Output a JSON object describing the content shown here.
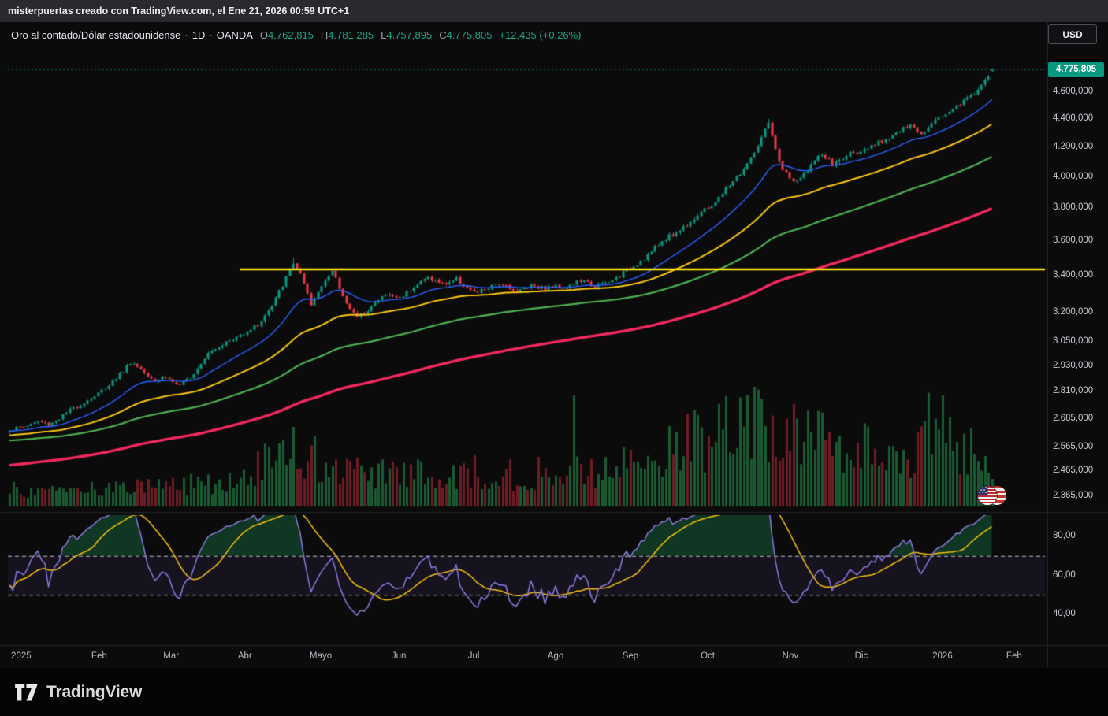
{
  "header": {
    "watermark": "misterpuertas creado con TradingView.com, el Ene 21, 2026 00:59 UTC+1"
  },
  "legend": {
    "symbol": "Oro al contado/Dólar estadounidense",
    "sep": "·",
    "interval": "1D",
    "exchange": "OANDA",
    "open_label": "O",
    "open_value": "4.762,815",
    "high_label": "H",
    "high_value": "4.781,285",
    "low_label": "L",
    "low_value": "4.757,895",
    "close_label": "C",
    "close_value": "4.775,805",
    "change": "+12,435 (+0,26%)"
  },
  "toolbar": {
    "currency": "USD"
  },
  "price_tag": {
    "value": "4.775,805"
  },
  "footer": {
    "brand": "TradingView"
  },
  "chart_data": {
    "type": "candlestick",
    "title": "Oro al contado/Dólar estadounidense (XAU/USD) · 1D · OANDA",
    "scale": "logarithmic",
    "candles_count": 278,
    "ohlc_last": {
      "open": 4762.815,
      "high": 4781.285,
      "low": 4757.895,
      "close": 4775.805,
      "change": 12.435,
      "change_pct": 0.26
    },
    "price_axis_ticks": [
      {
        "label": "4.600,000",
        "value": 4600
      },
      {
        "label": "4.400,000",
        "value": 4400
      },
      {
        "label": "4.200,000",
        "value": 4200
      },
      {
        "label": "4.000,000",
        "value": 4000
      },
      {
        "label": "3.800,000",
        "value": 3800
      },
      {
        "label": "3.600,000",
        "value": 3600
      },
      {
        "label": "3.400,000",
        "value": 3400
      },
      {
        "label": "3.200,000",
        "value": 3200
      },
      {
        "label": "3.050,000",
        "value": 3050
      },
      {
        "label": "2.930,000",
        "value": 2930
      },
      {
        "label": "2.810,000",
        "value": 2810
      },
      {
        "label": "2.685,000",
        "value": 2685
      },
      {
        "label": "2.565,000",
        "value": 2565
      },
      {
        "label": "2.465,000",
        "value": 2465
      },
      {
        "label": "2.365,000",
        "value": 2365
      }
    ],
    "time_axis": [
      {
        "label": "2025",
        "index": 3.3
      },
      {
        "label": "Feb",
        "index": 25.3
      },
      {
        "label": "Mar",
        "index": 45.6
      },
      {
        "label": "Abr",
        "index": 66.4
      },
      {
        "label": "Mayo",
        "index": 87.8
      },
      {
        "label": "Jun",
        "index": 109.8
      },
      {
        "label": "Jul",
        "index": 130.9
      },
      {
        "label": "Ago",
        "index": 154
      },
      {
        "label": "Sep",
        "index": 175.1
      },
      {
        "label": "Oct",
        "index": 196.9
      },
      {
        "label": "Nov",
        "index": 220.2
      },
      {
        "label": "Dic",
        "index": 240.2
      },
      {
        "label": "2026",
        "index": 263.1
      },
      {
        "label": "Feb",
        "index": 283.3
      }
    ],
    "close_anchors": [
      [
        0,
        2640
      ],
      [
        4,
        2652
      ],
      [
        8,
        2676
      ],
      [
        11,
        2662
      ],
      [
        14,
        2690
      ],
      [
        18,
        2735
      ],
      [
        22,
        2770
      ],
      [
        25,
        2800
      ],
      [
        29,
        2860
      ],
      [
        32,
        2908
      ],
      [
        34,
        2950
      ],
      [
        37,
        2918
      ],
      [
        41,
        2865
      ],
      [
        44,
        2880
      ],
      [
        48,
        2832
      ],
      [
        52,
        2900
      ],
      [
        56,
        3000
      ],
      [
        60,
        3040
      ],
      [
        63,
        3058
      ],
      [
        66,
        3098
      ],
      [
        70,
        3135
      ],
      [
        74,
        3235
      ],
      [
        78,
        3390
      ],
      [
        80,
        3475
      ],
      [
        82,
        3405
      ],
      [
        85,
        3235
      ],
      [
        87,
        3310
      ],
      [
        89,
        3385
      ],
      [
        91,
        3425
      ],
      [
        94,
        3285
      ],
      [
        98,
        3170
      ],
      [
        102,
        3235
      ],
      [
        106,
        3298
      ],
      [
        110,
        3280
      ],
      [
        114,
        3342
      ],
      [
        118,
        3392
      ],
      [
        122,
        3352
      ],
      [
        126,
        3382
      ],
      [
        131,
        3302
      ],
      [
        135,
        3332
      ],
      [
        139,
        3362
      ],
      [
        143,
        3312
      ],
      [
        147,
        3352
      ],
      [
        151,
        3330
      ],
      [
        154,
        3342
      ],
      [
        157,
        3338
      ],
      [
        161,
        3372
      ],
      [
        165,
        3342
      ],
      [
        169,
        3362
      ],
      [
        172,
        3402
      ],
      [
        175,
        3442
      ],
      [
        179,
        3502
      ],
      [
        182,
        3558
      ],
      [
        185,
        3618
      ],
      [
        188,
        3652
      ],
      [
        191,
        3702
      ],
      [
        194,
        3758
      ],
      [
        197,
        3802
      ],
      [
        200,
        3862
      ],
      [
        203,
        3952
      ],
      [
        206,
        4022
      ],
      [
        209,
        4122
      ],
      [
        212,
        4262
      ],
      [
        214,
        4368
      ],
      [
        216,
        4178
      ],
      [
        218,
        4052
      ],
      [
        220,
        3992
      ],
      [
        222,
        3962
      ],
      [
        226,
        4082
      ],
      [
        229,
        4152
      ],
      [
        232,
        4082
      ],
      [
        235,
        4122
      ],
      [
        238,
        4178
      ],
      [
        240,
        4158
      ],
      [
        243,
        4202
      ],
      [
        247,
        4262
      ],
      [
        250,
        4302
      ],
      [
        254,
        4352
      ],
      [
        257,
        4298
      ],
      [
        260,
        4382
      ],
      [
        263,
        4422
      ],
      [
        266,
        4482
      ],
      [
        269,
        4532
      ],
      [
        271,
        4578
      ],
      [
        273,
        4622
      ],
      [
        275,
        4682
      ],
      [
        276,
        4732
      ],
      [
        277,
        4775.805
      ]
    ],
    "wick_highs": {
      "80": 3500,
      "214": 4402
    },
    "volume_envelope": [
      [
        0,
        0.16
      ],
      [
        20,
        0.15
      ],
      [
        40,
        0.17
      ],
      [
        60,
        0.22
      ],
      [
        66,
        0.3
      ],
      [
        75,
        0.42
      ],
      [
        80,
        0.52
      ],
      [
        85,
        0.46
      ],
      [
        90,
        0.36
      ],
      [
        100,
        0.3
      ],
      [
        110,
        0.28
      ],
      [
        120,
        0.3
      ],
      [
        130,
        0.32
      ],
      [
        140,
        0.28
      ],
      [
        150,
        0.3
      ],
      [
        158,
        0.36
      ],
      [
        165,
        0.3
      ],
      [
        172,
        0.34
      ],
      [
        178,
        0.44
      ],
      [
        185,
        0.5
      ],
      [
        190,
        0.56
      ],
      [
        195,
        0.6
      ],
      [
        200,
        0.66
      ],
      [
        205,
        0.76
      ],
      [
        210,
        0.86
      ],
      [
        214,
        0.8
      ],
      [
        218,
        0.72
      ],
      [
        222,
        0.62
      ],
      [
        226,
        0.56
      ],
      [
        230,
        0.6
      ],
      [
        235,
        0.56
      ],
      [
        240,
        0.5
      ],
      [
        245,
        0.5
      ],
      [
        250,
        0.46
      ],
      [
        255,
        0.52
      ],
      [
        258,
        0.62
      ],
      [
        262,
        0.7
      ],
      [
        266,
        0.56
      ],
      [
        270,
        0.5
      ],
      [
        274,
        0.46
      ],
      [
        277,
        0.42
      ]
    ],
    "volume_spikes": {
      "159": 0.93,
      "210": 1.0,
      "212": 0.9,
      "259": 0.95
    },
    "horizontal_line": {
      "price": 3436,
      "start_index": 65
    },
    "price_line": {
      "price": 4775.805,
      "style": "dotted"
    },
    "moving_averages": [
      {
        "name": "ma-long",
        "period": 200,
        "seed": 2488,
        "width": 3.4,
        "color_key": "ma_red"
      },
      {
        "name": "ema-slow",
        "period": 100,
        "seed": 2592,
        "width": 2.2,
        "color_key": "ma_green"
      },
      {
        "name": "ema-medium",
        "period": 50,
        "seed": 2615,
        "width": 2.0,
        "color_key": "ma_yellow"
      },
      {
        "name": "ema-fast",
        "period": 20,
        "seed": null,
        "width": 1.4,
        "color_key": "ma_blue"
      }
    ],
    "rsi": {
      "period": 14,
      "ma_period": 14,
      "bands": [
        70,
        50
      ],
      "ticks": [
        {
          "label": "80,00",
          "value": 80
        },
        {
          "label": "60,00",
          "value": 60
        },
        {
          "label": "40,00",
          "value": 40
        }
      ]
    },
    "colors": {
      "background": "#0b0b0c",
      "up": "#089981",
      "down": "#f23645",
      "vol_up": "rgba(34,140,74,0.62)",
      "vol_down": "rgba(168,38,49,0.65)",
      "ma_blue": "#2962ff",
      "ma_yellow": "#f8c513",
      "ma_green": "#4caf50",
      "ma_red": "#f3295e",
      "hline_yellow": "#ffe600",
      "price_line": "#089981",
      "rsi_line": "#8b7ae0",
      "rsi_ma": "#f6c309",
      "rsi_fill": "rgba(34,171,96,0.28)",
      "band_fill": "rgba(126,87,194,0.10)",
      "band_line": "rgba(255,255,255,0.72)",
      "divider": "#222429"
    }
  }
}
